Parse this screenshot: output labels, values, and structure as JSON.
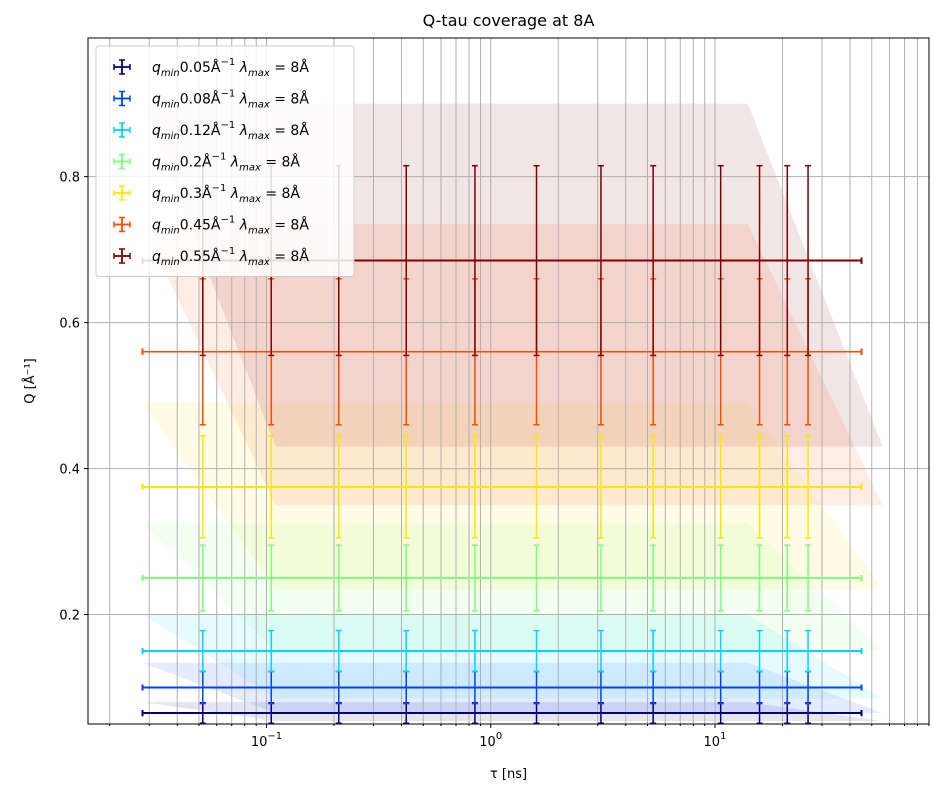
{
  "chart_data": {
    "type": "scatter",
    "title": "Q-tau coverage at 8A",
    "xlabel": "τ [ns]",
    "ylabel": "Q [Å⁻¹]",
    "xscale": "log",
    "xlim": [
      0.016,
      90
    ],
    "ylim": [
      0.05,
      0.99
    ],
    "grid": "both",
    "legend_location": "upper-left",
    "x_tick_labels": [
      {
        "value": 0.1,
        "mantissa": "10",
        "exp": "−1"
      },
      {
        "value": 1,
        "mantissa": "10",
        "exp": "0"
      },
      {
        "value": 10,
        "mantissa": "10",
        "exp": "1"
      }
    ],
    "y_ticks": [
      0.2,
      0.4,
      0.6,
      0.8
    ],
    "y_tick_labels": [
      "0.2",
      "0.4",
      "0.6",
      "0.8"
    ],
    "tau": [
      0.052,
      0.105,
      0.21,
      0.42,
      0.85,
      1.6,
      3.1,
      5.3,
      10.6,
      15.8,
      21,
      26
    ],
    "series": [
      {
        "q_label": "0.05",
        "color": "#000080",
        "q": 0.065,
        "q_err": 0.014,
        "tau_lo": 0.028,
        "tau_hi": 45,
        "band": [
          0.054,
          0.08,
          0.08,
          0.054
        ]
      },
      {
        "q_label": "0.08",
        "color": "#0044ff",
        "q": 0.1,
        "q_err": 0.022,
        "tau_lo": 0.028,
        "tau_hi": 45,
        "band": [
          0.065,
          0.134,
          0.134,
          0.065
        ]
      },
      {
        "q_label": "0.12",
        "color": "#00d4ff",
        "q": 0.15,
        "q_err": 0.028,
        "tau_lo": 0.028,
        "tau_hi": 45,
        "band": [
          0.085,
          0.2,
          0.2,
          0.085
        ]
      },
      {
        "q_label": "0.2",
        "color": "#7dff7a",
        "q": 0.25,
        "q_err": 0.045,
        "tau_lo": 0.028,
        "tau_hi": 45,
        "band": [
          0.15,
          0.325,
          0.325,
          0.15
        ]
      },
      {
        "q_label": "0.3",
        "color": "#ffe600",
        "q": 0.375,
        "q_err": 0.07,
        "tau_lo": 0.028,
        "tau_hi": 45,
        "band": [
          0.235,
          0.49,
          0.49,
          0.235
        ]
      },
      {
        "q_label": "0.45",
        "color": "#ff4a00",
        "q": 0.56,
        "q_err": 0.1,
        "tau_lo": 0.028,
        "tau_hi": 45,
        "band": [
          0.35,
          0.735,
          0.735,
          0.35
        ]
      },
      {
        "q_label": "0.55",
        "color": "#800000",
        "q": 0.685,
        "q_err": 0.13,
        "tau_lo": 0.028,
        "tau_hi": 45,
        "band": [
          0.43,
          0.9,
          0.9,
          0.43
        ]
      }
    ]
  }
}
